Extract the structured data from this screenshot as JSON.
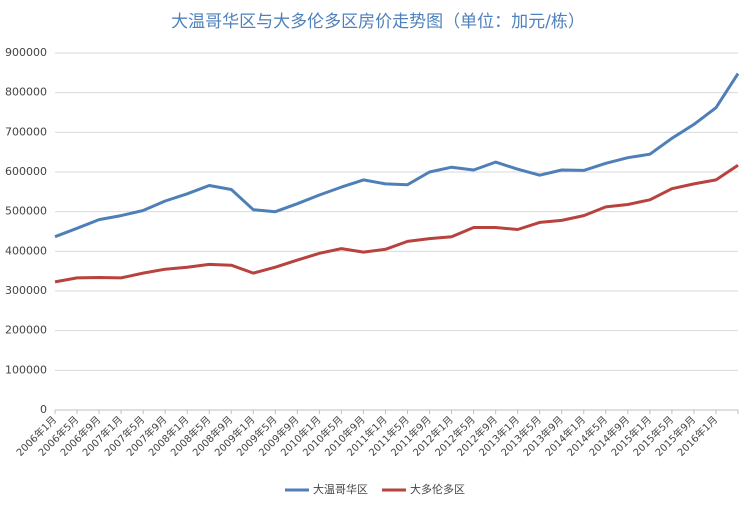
{
  "chart_data": {
    "type": "line",
    "title": "大温哥华区与大多伦多区房价走势图（单位：加元/栋）",
    "categories": [
      "2006年1月",
      "2006年5月",
      "2006年9月",
      "2007年1月",
      "2007年5月",
      "2007年9月",
      "2008年1月",
      "2008年5月",
      "2008年9月",
      "2009年1月",
      "2009年5月",
      "2009年9月",
      "2010年1月",
      "2010年5月",
      "2010年9月",
      "2011年1月",
      "2011年5月",
      "2011年9月",
      "2012年1月",
      "2012年5月",
      "2012年9月",
      "2013年1月",
      "2013年5月",
      "2013年9月",
      "2014年1月",
      "2014年5月",
      "2014年9月",
      "2015年1月",
      "2015年5月",
      "2015年9月",
      "2016年1月",
      null
    ],
    "series": [
      {
        "name": "大温哥华区",
        "color": "#4f7fb8",
        "values": [
          437000,
          458000,
          480000,
          490000,
          503000,
          527000,
          545000,
          566000,
          556000,
          505000,
          500000,
          520000,
          542000,
          562000,
          580000,
          570000,
          568000,
          600000,
          612000,
          605000,
          625000,
          607000,
          592000,
          605000,
          604000,
          622000,
          636000,
          645000,
          685000,
          720000,
          762000,
          848000
        ]
      },
      {
        "name": "大多伦多区",
        "color": "#b8433e",
        "values": [
          323000,
          333000,
          334000,
          333000,
          345000,
          355000,
          360000,
          367000,
          365000,
          345000,
          360000,
          378000,
          395000,
          407000,
          398000,
          405000,
          425000,
          432000,
          437000,
          460000,
          460000,
          455000,
          473000,
          478000,
          490000,
          512000,
          518000,
          530000,
          558000,
          570000,
          580000,
          617000
        ]
      }
    ],
    "ylim": [
      0,
      900000
    ],
    "yticks": [
      0,
      100000,
      200000,
      300000,
      400000,
      500000,
      600000,
      700000,
      800000,
      900000
    ],
    "grid": true
  }
}
